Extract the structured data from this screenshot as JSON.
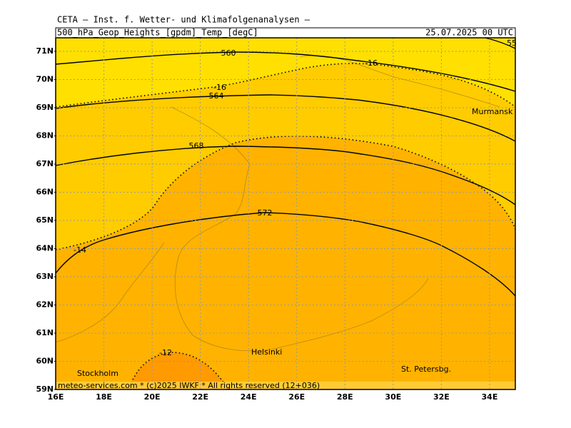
{
  "header": {
    "title": "CETA — Inst. f. Wetter- und Klimafolgenanalysen —",
    "subtitle": "500_hPa_Geop_Heights_[gpdm]_Temp_[degC]",
    "valid_time": "25.07.2025 00 UTC"
  },
  "map": {
    "lat_labels": [
      "59N",
      "60N",
      "61N",
      "62N",
      "63N",
      "64N",
      "65N",
      "66N",
      "67N",
      "68N",
      "69N",
      "70N",
      "71N"
    ],
    "lon_labels": [
      "16E",
      "18E",
      "20E",
      "22E",
      "24E",
      "26E",
      "28E",
      "30E",
      "32E",
      "34E"
    ],
    "contour_labels": [
      "560",
      "564",
      "568",
      "572",
      "55"
    ],
    "temperature_labels": [
      "-16",
      "-16",
      "-14",
      "-12"
    ],
    "places": [
      "Murmansk",
      "Helsinki",
      "St. Petersbg.",
      "Stockholm"
    ]
  },
  "footer": "meteo-services.com * (c)2025 IWKF * All rights reserved (12+036)"
}
